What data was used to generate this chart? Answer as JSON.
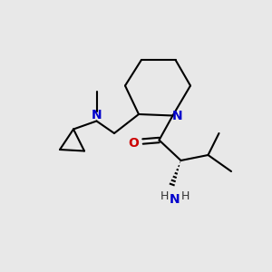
{
  "background_color": "#e8e8e8",
  "bond_color": "#000000",
  "N_color": "#0000cc",
  "O_color": "#cc0000",
  "line_width": 1.5,
  "figsize": [
    3.0,
    3.0
  ],
  "dpi": 100,
  "xlim": [
    0,
    10
  ],
  "ylim": [
    0,
    10
  ]
}
